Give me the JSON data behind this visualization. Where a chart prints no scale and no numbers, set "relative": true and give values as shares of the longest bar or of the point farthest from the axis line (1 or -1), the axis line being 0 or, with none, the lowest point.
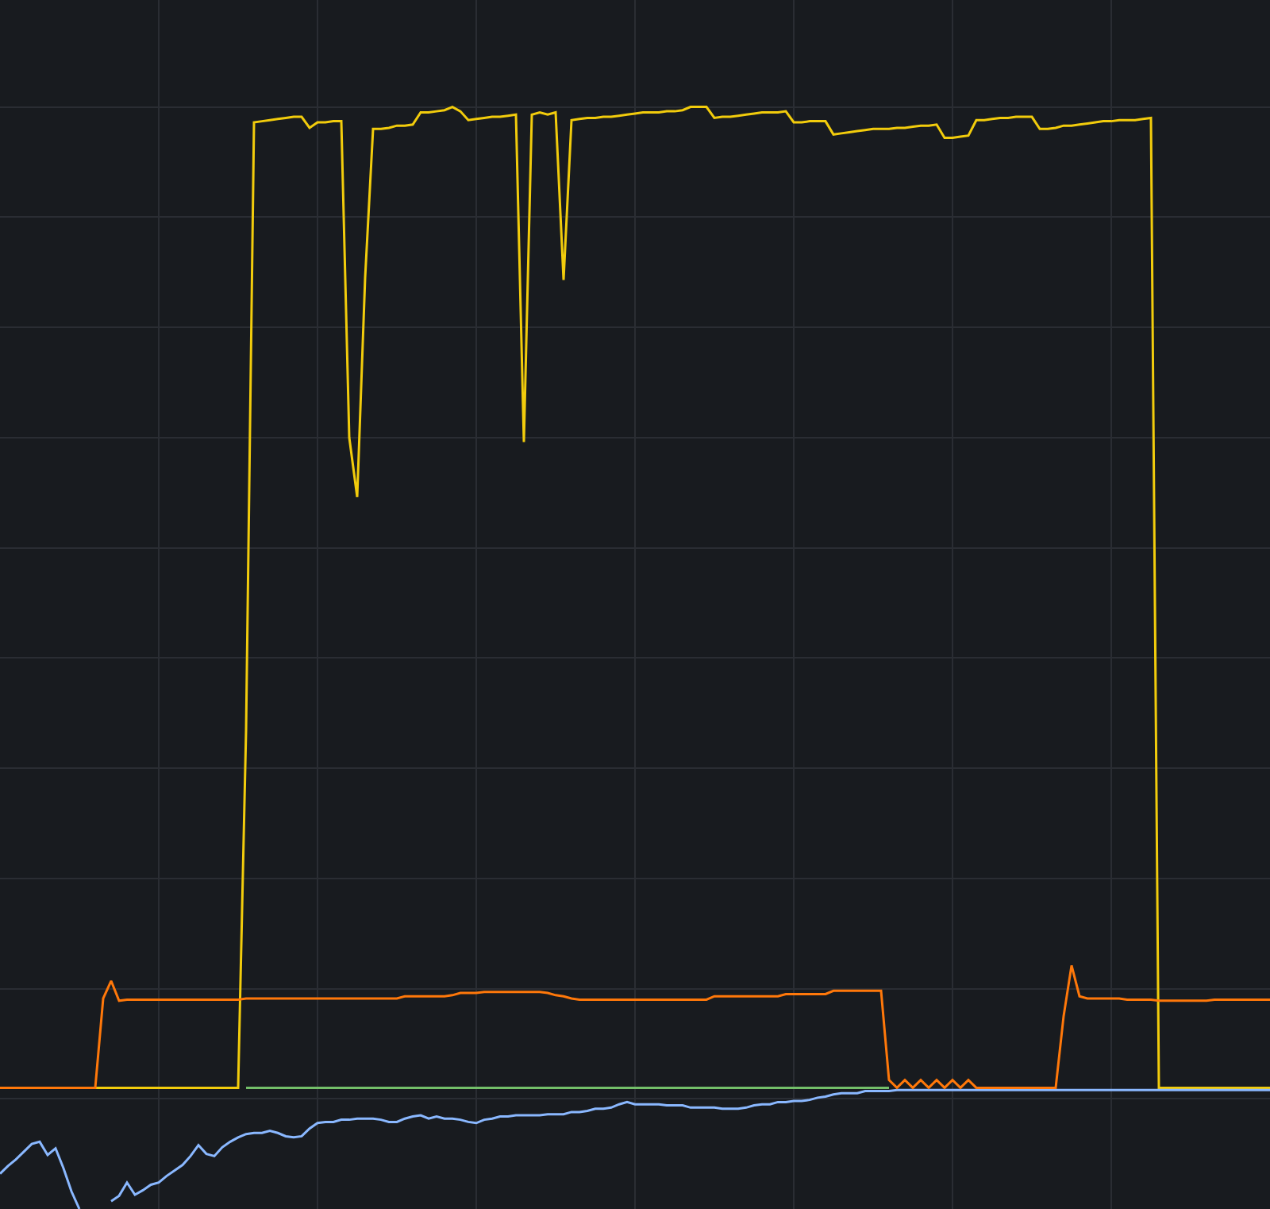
{
  "chart_data": {
    "type": "line",
    "relative": true,
    "grid": true,
    "categories": [
      null,
      null,
      null,
      null,
      null,
      null,
      null,
      null,
      null,
      null,
      null,
      null,
      null,
      null,
      null,
      null,
      null,
      null,
      null,
      null,
      null,
      null,
      null,
      null,
      null,
      null,
      null,
      null,
      null,
      null,
      null,
      null,
      null,
      null,
      null,
      null,
      null,
      null,
      null,
      null,
      null,
      null,
      null,
      null,
      null,
      null,
      null,
      null,
      null,
      null,
      null,
      null,
      null,
      null,
      null,
      null,
      null,
      null,
      null,
      null,
      null,
      null,
      null,
      null,
      null,
      null,
      null,
      null,
      null,
      null,
      null,
      null,
      null,
      null,
      null,
      null,
      null,
      null,
      null,
      null,
      null,
      null,
      null,
      null,
      null,
      null,
      null,
      null,
      null,
      null,
      null,
      null,
      null,
      null,
      null,
      null,
      null,
      null,
      null,
      null,
      null,
      null,
      null,
      null,
      null,
      null,
      null,
      null,
      null,
      null,
      null,
      null,
      null,
      null,
      null,
      null,
      null,
      null,
      null,
      null,
      null,
      null,
      null,
      null,
      null,
      null,
      null,
      null,
      null,
      null,
      null,
      null,
      null,
      null,
      null,
      null,
      null,
      null,
      null,
      null,
      null,
      null,
      null,
      null,
      null,
      null,
      null,
      null,
      null,
      null,
      null,
      null,
      null,
      null,
      null,
      null,
      null,
      null,
      null,
      null,
      null
    ],
    "series": [
      {
        "color": "#73bf69",
        "values": [
          null,
          null,
          null,
          null,
          null,
          null,
          null,
          null,
          null,
          null,
          null,
          null,
          null,
          null,
          null,
          null,
          null,
          null,
          null,
          null,
          null,
          null,
          null,
          null,
          null,
          null,
          null,
          null,
          null,
          null,
          null,
          0.11,
          0.11,
          0.11,
          0.11,
          0.11,
          0.11,
          0.11,
          0.11,
          0.11,
          0.11,
          0.11,
          0.11,
          0.11,
          0.11,
          0.11,
          0.11,
          0.11,
          0.11,
          0.11,
          0.11,
          0.11,
          0.11,
          0.11,
          0.11,
          0.11,
          0.11,
          0.11,
          0.11,
          0.11,
          0.11,
          0.11,
          0.11,
          0.11,
          0.11,
          0.11,
          0.11,
          0.11,
          0.11,
          0.11,
          0.11,
          0.11,
          0.11,
          0.11,
          0.11,
          0.11,
          0.11,
          0.11,
          0.11,
          0.11,
          0.11,
          0.11,
          0.11,
          0.11,
          0.11,
          0.11,
          0.11,
          0.11,
          0.11,
          0.11,
          0.11,
          0.11,
          0.11,
          0.11,
          0.11,
          0.11,
          0.11,
          0.11,
          0.11,
          0.11,
          0.11,
          0.11,
          0.11,
          0.11,
          0.11,
          0.11,
          0.11,
          0.11,
          0.11,
          0.11,
          0.11,
          0.11,
          0.11,
          null,
          null,
          null,
          null,
          null,
          null,
          null,
          null,
          null,
          null,
          null,
          null,
          null,
          null,
          null,
          null,
          null,
          null,
          null,
          null,
          null,
          null,
          null,
          null,
          null,
          null,
          null,
          null,
          null,
          null,
          null,
          null,
          null,
          null,
          null,
          null,
          null,
          null,
          null,
          null,
          null,
          null,
          null,
          null,
          null,
          null,
          null,
          null
        ]
      },
      {
        "color": "#f2cc0c",
        "values": [
          null,
          null,
          null,
          null,
          null,
          null,
          null,
          null,
          null,
          null,
          null,
          null,
          0.11,
          0.11,
          0.11,
          0.11,
          0.11,
          0.11,
          0.11,
          0.11,
          0.11,
          0.11,
          0.11,
          0.11,
          0.11,
          0.11,
          0.11,
          0.11,
          0.11,
          0.11,
          0.11,
          0.434,
          0.986,
          0.987,
          0.988,
          0.989,
          0.99,
          0.991,
          0.991,
          0.981,
          0.986,
          0.986,
          0.987,
          0.987,
          0.7,
          0.646,
          0.845,
          0.98,
          0.98,
          0.981,
          0.983,
          0.983,
          0.984,
          0.995,
          0.995,
          0.996,
          0.997,
          1.0,
          0.996,
          0.988,
          0.989,
          0.99,
          0.991,
          0.991,
          0.992,
          0.993,
          0.696,
          0.993,
          0.995,
          0.993,
          0.995,
          0.843,
          0.988,
          0.989,
          0.99,
          0.99,
          0.991,
          0.991,
          0.992,
          0.993,
          0.994,
          0.995,
          0.995,
          0.995,
          0.996,
          0.996,
          0.997,
          1.0,
          1.0,
          1.0,
          0.99,
          0.991,
          0.991,
          0.992,
          0.993,
          0.994,
          0.995,
          0.995,
          0.995,
          0.996,
          0.986,
          0.986,
          0.987,
          0.987,
          0.987,
          0.975,
          0.976,
          0.977,
          0.978,
          0.979,
          0.98,
          0.98,
          0.98,
          0.981,
          0.981,
          0.982,
          0.983,
          0.983,
          0.984,
          0.972,
          0.972,
          0.973,
          0.974,
          0.988,
          0.988,
          0.989,
          0.99,
          0.99,
          0.991,
          0.991,
          0.991,
          0.98,
          0.98,
          0.981,
          0.983,
          0.983,
          0.984,
          0.985,
          0.986,
          0.987,
          0.987,
          0.988,
          0.988,
          0.988,
          0.989,
          0.99,
          0.11,
          0.11,
          0.11,
          0.11,
          0.11,
          0.11,
          0.11,
          0.11,
          0.11,
          0.11,
          0.11,
          0.11,
          0.11,
          0.11,
          0.11
        ]
      },
      {
        "color": "#8ab8ff",
        "values": [
          0.032,
          0.039,
          0.045,
          0.052,
          0.059,
          0.061,
          0.049,
          0.055,
          0.037,
          0.016,
          0,
          null,
          null,
          null,
          0.007,
          0.012,
          0.024,
          0.013,
          0.017,
          0.022,
          0.024,
          0.03,
          0.035,
          0.04,
          0.048,
          0.058,
          0.05,
          0.048,
          0.056,
          0.061,
          0.065,
          0.068,
          0.069,
          0.069,
          0.071,
          0.069,
          0.066,
          0.065,
          0.066,
          0.073,
          0.078,
          0.079,
          0.079,
          0.081,
          0.081,
          0.082,
          0.082,
          0.082,
          0.081,
          0.079,
          0.079,
          0.082,
          0.084,
          0.085,
          0.082,
          0.084,
          0.082,
          0.082,
          0.081,
          0.079,
          0.078,
          0.081,
          0.082,
          0.084,
          0.084,
          0.085,
          0.085,
          0.085,
          0.085,
          0.086,
          0.086,
          0.086,
          0.088,
          0.088,
          0.089,
          0.091,
          0.091,
          0.092,
          0.095,
          0.097,
          0.095,
          0.095,
          0.095,
          0.095,
          0.094,
          0.094,
          0.094,
          0.092,
          0.092,
          0.092,
          0.092,
          0.091,
          0.091,
          0.091,
          0.092,
          0.094,
          0.095,
          0.095,
          0.097,
          0.097,
          0.098,
          0.098,
          0.099,
          0.101,
          0.102,
          0.104,
          0.105,
          0.105,
          0.105,
          0.107,
          0.107,
          0.107,
          0.107,
          0.108,
          0.108,
          0.108,
          0.108,
          0.108,
          0.108,
          0.108,
          0.108,
          0.108,
          0.108,
          0.108,
          0.108,
          0.108,
          0.108,
          0.108,
          0.108,
          0.108,
          0.108,
          0.108,
          0.108,
          0.108,
          0.108,
          0.108,
          0.108,
          0.108,
          0.108,
          0.108,
          0.108,
          0.108,
          0.108,
          0.108,
          0.108,
          0.108,
          0.108,
          0.108,
          0.108,
          0.108,
          0.108,
          0.108,
          0.108,
          0.108,
          0.108,
          0.108,
          0.108,
          0.108,
          0.108,
          0.108,
          0.108
        ]
      },
      {
        "color": "#ff780a",
        "values": [
          0.11,
          0.11,
          0.11,
          0.11,
          0.11,
          0.11,
          0.11,
          0.11,
          0.11,
          0.11,
          0.11,
          0.11,
          0.11,
          0.191,
          0.207,
          0.189,
          0.19,
          0.19,
          0.19,
          0.19,
          0.19,
          0.19,
          0.19,
          0.19,
          0.19,
          0.19,
          0.19,
          0.19,
          0.19,
          0.19,
          0.19,
          0.191,
          0.191,
          0.191,
          0.191,
          0.191,
          0.191,
          0.191,
          0.191,
          0.191,
          0.191,
          0.191,
          0.191,
          0.191,
          0.191,
          0.191,
          0.191,
          0.191,
          0.191,
          0.191,
          0.191,
          0.193,
          0.193,
          0.193,
          0.193,
          0.193,
          0.193,
          0.194,
          0.196,
          0.196,
          0.196,
          0.197,
          0.197,
          0.197,
          0.197,
          0.197,
          0.197,
          0.197,
          0.197,
          0.196,
          0.194,
          0.193,
          0.191,
          0.19,
          0.19,
          0.19,
          0.19,
          0.19,
          0.19,
          0.19,
          0.19,
          0.19,
          0.19,
          0.19,
          0.19,
          0.19,
          0.19,
          0.19,
          0.19,
          0.19,
          0.193,
          0.193,
          0.193,
          0.193,
          0.193,
          0.193,
          0.193,
          0.193,
          0.193,
          0.195,
          0.195,
          0.195,
          0.195,
          0.195,
          0.195,
          0.198,
          0.198,
          0.198,
          0.198,
          0.198,
          0.198,
          0.198,
          0.117,
          0.11,
          0.117,
          0.11,
          0.117,
          0.11,
          0.117,
          0.11,
          0.117,
          0.11,
          0.117,
          0.11,
          0.11,
          0.11,
          0.11,
          0.11,
          0.11,
          0.11,
          0.11,
          0.11,
          0.11,
          0.11,
          0.175,
          0.221,
          0.193,
          0.191,
          0.191,
          0.191,
          0.191,
          0.191,
          0.19,
          0.19,
          0.19,
          0.19,
          0.189,
          0.189,
          0.189,
          0.189,
          0.189,
          0.189,
          0.189,
          0.19,
          0.19,
          0.19,
          0.19,
          0.19,
          0.19,
          0.19,
          0.19
        ]
      }
    ]
  }
}
